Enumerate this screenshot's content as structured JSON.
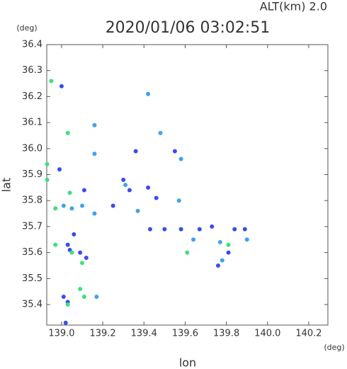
{
  "chart_data": {
    "type": "scatter",
    "title": "2020/01/06 03:02:51",
    "subtitle": "ALT(km) 2.0",
    "y_unit": "(deg)",
    "x_unit": "(deg)",
    "x_label": "lon",
    "y_label": "lat",
    "xlim": [
      138.928,
      140.293
    ],
    "ylim": [
      35.321,
      36.4
    ],
    "xticks": [
      {
        "value": 139,
        "label": "139.0"
      },
      139.2,
      139.4,
      139.6,
      139.8,
      {
        "value": 140,
        "label": "140.0"
      },
      140.2
    ],
    "yticks": [
      35.4,
      35.5,
      35.6,
      35.7,
      35.8,
      35.9,
      {
        "value": 36,
        "label": "36.0"
      },
      36.1,
      36.2,
      36.3,
      36.4
    ],
    "grid": false,
    "series": [
      {
        "name": "blue",
        "color": "#3a4cf0",
        "x": [
          139.0,
          138.99,
          139.06,
          139.03,
          139.04,
          139.09,
          139.12,
          139.01,
          139.03,
          139.02,
          139.36,
          139.3,
          139.33,
          139.25,
          139.43,
          139.5,
          139.58,
          139.67,
          139.73,
          139.76,
          139.84,
          139.89,
          139.81,
          139.11,
          139.42,
          139.55,
          139.46
        ],
        "values": [
          36.24,
          35.92,
          35.67,
          35.63,
          35.61,
          35.6,
          35.58,
          35.43,
          35.41,
          35.33,
          35.99,
          35.88,
          35.84,
          35.78,
          35.69,
          35.69,
          35.69,
          35.69,
          35.7,
          35.55,
          35.69,
          35.69,
          35.6,
          35.84,
          35.85,
          35.99,
          35.81
        ]
      },
      {
        "name": "cyan",
        "color": "#3fa2ee",
        "x": [
          139.16,
          139.16,
          139.01,
          139.05,
          139.1,
          139.16,
          139.31,
          139.37,
          139.64,
          139.77,
          139.78,
          139.9,
          139.57,
          139.17,
          139.58,
          139.48,
          139.42
        ],
        "values": [
          36.09,
          35.98,
          35.78,
          35.77,
          35.78,
          35.75,
          35.86,
          35.76,
          35.65,
          35.64,
          35.57,
          35.65,
          35.8,
          35.43,
          35.96,
          36.06,
          36.21
        ]
      },
      {
        "name": "green",
        "color": "#3fe07a",
        "x": [
          138.95,
          139.03,
          138.93,
          138.93,
          139.04,
          138.97,
          138.97,
          139.1,
          139.09,
          139.11,
          139.03,
          139.81,
          139.61,
          139.05
        ],
        "values": [
          36.26,
          36.06,
          35.94,
          35.88,
          35.83,
          35.77,
          35.63,
          35.56,
          35.46,
          35.43,
          35.4,
          35.63,
          35.6,
          35.6
        ]
      }
    ]
  }
}
